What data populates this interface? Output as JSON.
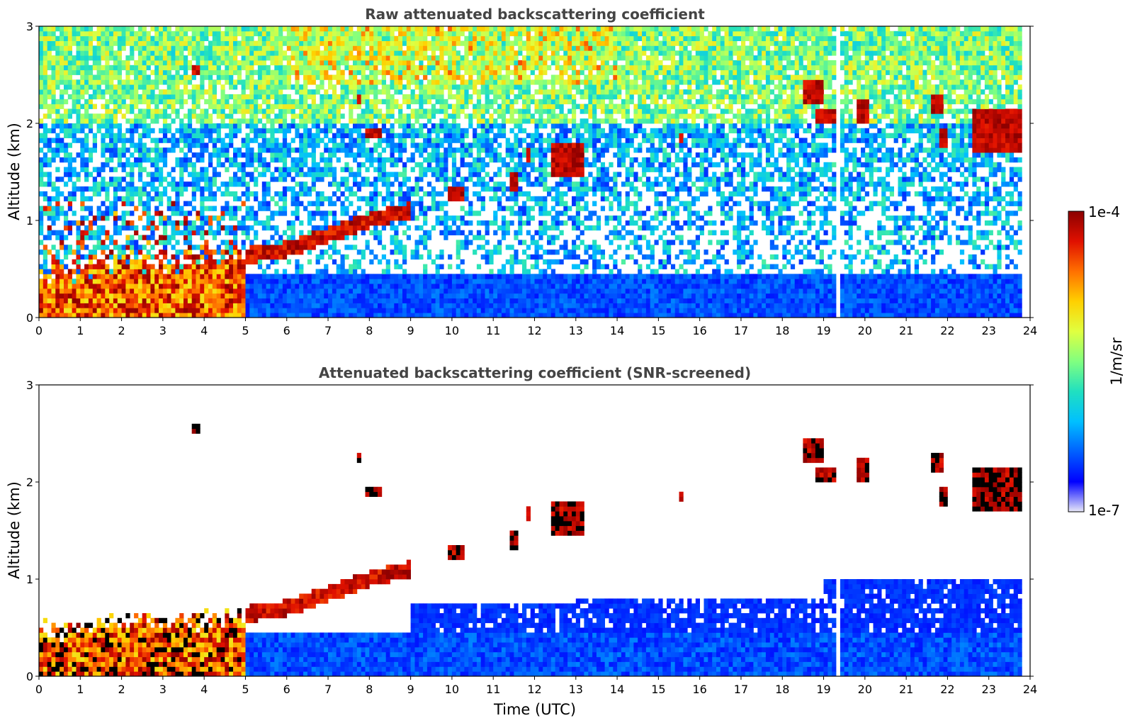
{
  "chart_data": [
    {
      "type": "heatmap",
      "title": "Raw attenuated backscattering coefficient",
      "xlabel": "",
      "ylabel": "Altitude (km)",
      "xlim": [
        0,
        24
      ],
      "ylim": [
        0,
        3
      ],
      "xticks": [
        "0",
        "1",
        "2",
        "3",
        "4",
        "5",
        "6",
        "7",
        "8",
        "9",
        "10",
        "11",
        "12",
        "13",
        "14",
        "15",
        "16",
        "17",
        "18",
        "19",
        "20",
        "21",
        "22",
        "23",
        "24"
      ],
      "yticks": [
        "0",
        "1",
        "2",
        "3"
      ],
      "grid": false,
      "features": {
        "boundary_layer": [
          [
            0.0,
            0.45
          ],
          [
            1.0,
            0.5
          ],
          [
            2.0,
            0.6
          ],
          [
            3.0,
            0.55
          ],
          [
            4.0,
            0.6
          ],
          [
            4.8,
            0.62
          ],
          [
            5.2,
            0.65
          ],
          [
            6.0,
            0.7
          ],
          [
            7.0,
            0.85
          ],
          [
            8.0,
            1.0
          ],
          [
            9.0,
            1.1
          ]
        ],
        "cloud_layers": [
          {
            "time_start": 3.7,
            "time_end": 3.9,
            "alt_low": 2.5,
            "alt_high": 2.6
          },
          {
            "time_start": 7.7,
            "time_end": 7.8,
            "alt_low": 2.2,
            "alt_high": 2.3
          },
          {
            "time_start": 7.9,
            "time_end": 8.3,
            "alt_low": 1.85,
            "alt_high": 1.95
          },
          {
            "time_start": 9.9,
            "time_end": 10.3,
            "alt_low": 1.2,
            "alt_high": 1.35
          },
          {
            "time_start": 11.4,
            "time_end": 11.6,
            "alt_low": 1.3,
            "alt_high": 1.5
          },
          {
            "time_start": 11.8,
            "time_end": 11.9,
            "alt_low": 1.6,
            "alt_high": 1.75
          },
          {
            "time_start": 12.4,
            "time_end": 13.2,
            "alt_low": 1.45,
            "alt_high": 1.8
          },
          {
            "time_start": 15.5,
            "time_end": 15.6,
            "alt_low": 1.8,
            "alt_high": 1.9
          },
          {
            "time_start": 18.5,
            "time_end": 19.0,
            "alt_low": 2.2,
            "alt_high": 2.45
          },
          {
            "time_start": 18.8,
            "time_end": 19.3,
            "alt_low": 2.0,
            "alt_high": 2.15
          },
          {
            "time_start": 19.8,
            "time_end": 20.1,
            "alt_low": 2.0,
            "alt_high": 2.25
          },
          {
            "time_start": 21.6,
            "time_end": 21.9,
            "alt_low": 2.1,
            "alt_high": 2.3
          },
          {
            "time_start": 21.8,
            "time_end": 22.0,
            "alt_low": 1.75,
            "alt_high": 1.95
          },
          {
            "time_start": 22.6,
            "time_end": 23.8,
            "alt_low": 1.72,
            "alt_high": 2.15
          }
        ],
        "data_gap_time": 19.35,
        "data_end_time": 23.8
      }
    },
    {
      "type": "heatmap",
      "title": "Attenuated backscattering coefficient (SNR-screened)",
      "xlabel": "Time (UTC)",
      "ylabel": "Altitude (km)",
      "xlim": [
        0,
        24
      ],
      "ylim": [
        0,
        3
      ],
      "xticks": [
        "0",
        "1",
        "2",
        "3",
        "4",
        "5",
        "6",
        "7",
        "8",
        "9",
        "10",
        "11",
        "12",
        "13",
        "14",
        "15",
        "16",
        "17",
        "18",
        "19",
        "20",
        "21",
        "22",
        "23",
        "24"
      ],
      "yticks": [
        "0",
        "1",
        "2",
        "3"
      ],
      "grid": false
    }
  ],
  "colorbar": {
    "label": "1/m/sr",
    "max_label": "1e-4",
    "min_label": "1e-7",
    "scale": "log",
    "colors": [
      "#e8e8f8",
      "#0000ff",
      "#0060ff",
      "#00c0ff",
      "#20e0c0",
      "#80ff80",
      "#e0ff40",
      "#ffd000",
      "#ff7000",
      "#e01000",
      "#8b0000"
    ]
  }
}
